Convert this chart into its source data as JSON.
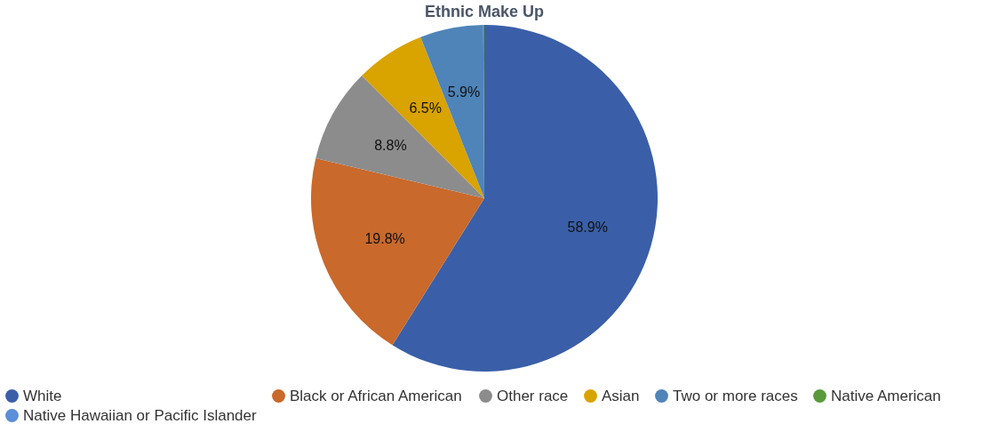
{
  "chart_data": {
    "type": "pie",
    "title": "Ethnic Make Up",
    "categories": [
      "White",
      "Black or African American",
      "Other race",
      "Asian",
      "Two or more races",
      "Native American",
      "Native Hawaiian or Pacific Islander"
    ],
    "values": [
      58.9,
      19.8,
      8.8,
      6.5,
      5.9,
      0.1,
      0.0
    ],
    "value_labels": [
      "58.9%",
      "19.8%",
      "8.8%",
      "6.5%",
      "5.9%",
      null,
      null
    ],
    "colors": [
      "#3a5fa8",
      "#c9692b",
      "#8c8c8c",
      "#d9a300",
      "#4f84b8",
      "#5b9a3c",
      "#5b8ed8"
    ],
    "legend": "bottom"
  }
}
